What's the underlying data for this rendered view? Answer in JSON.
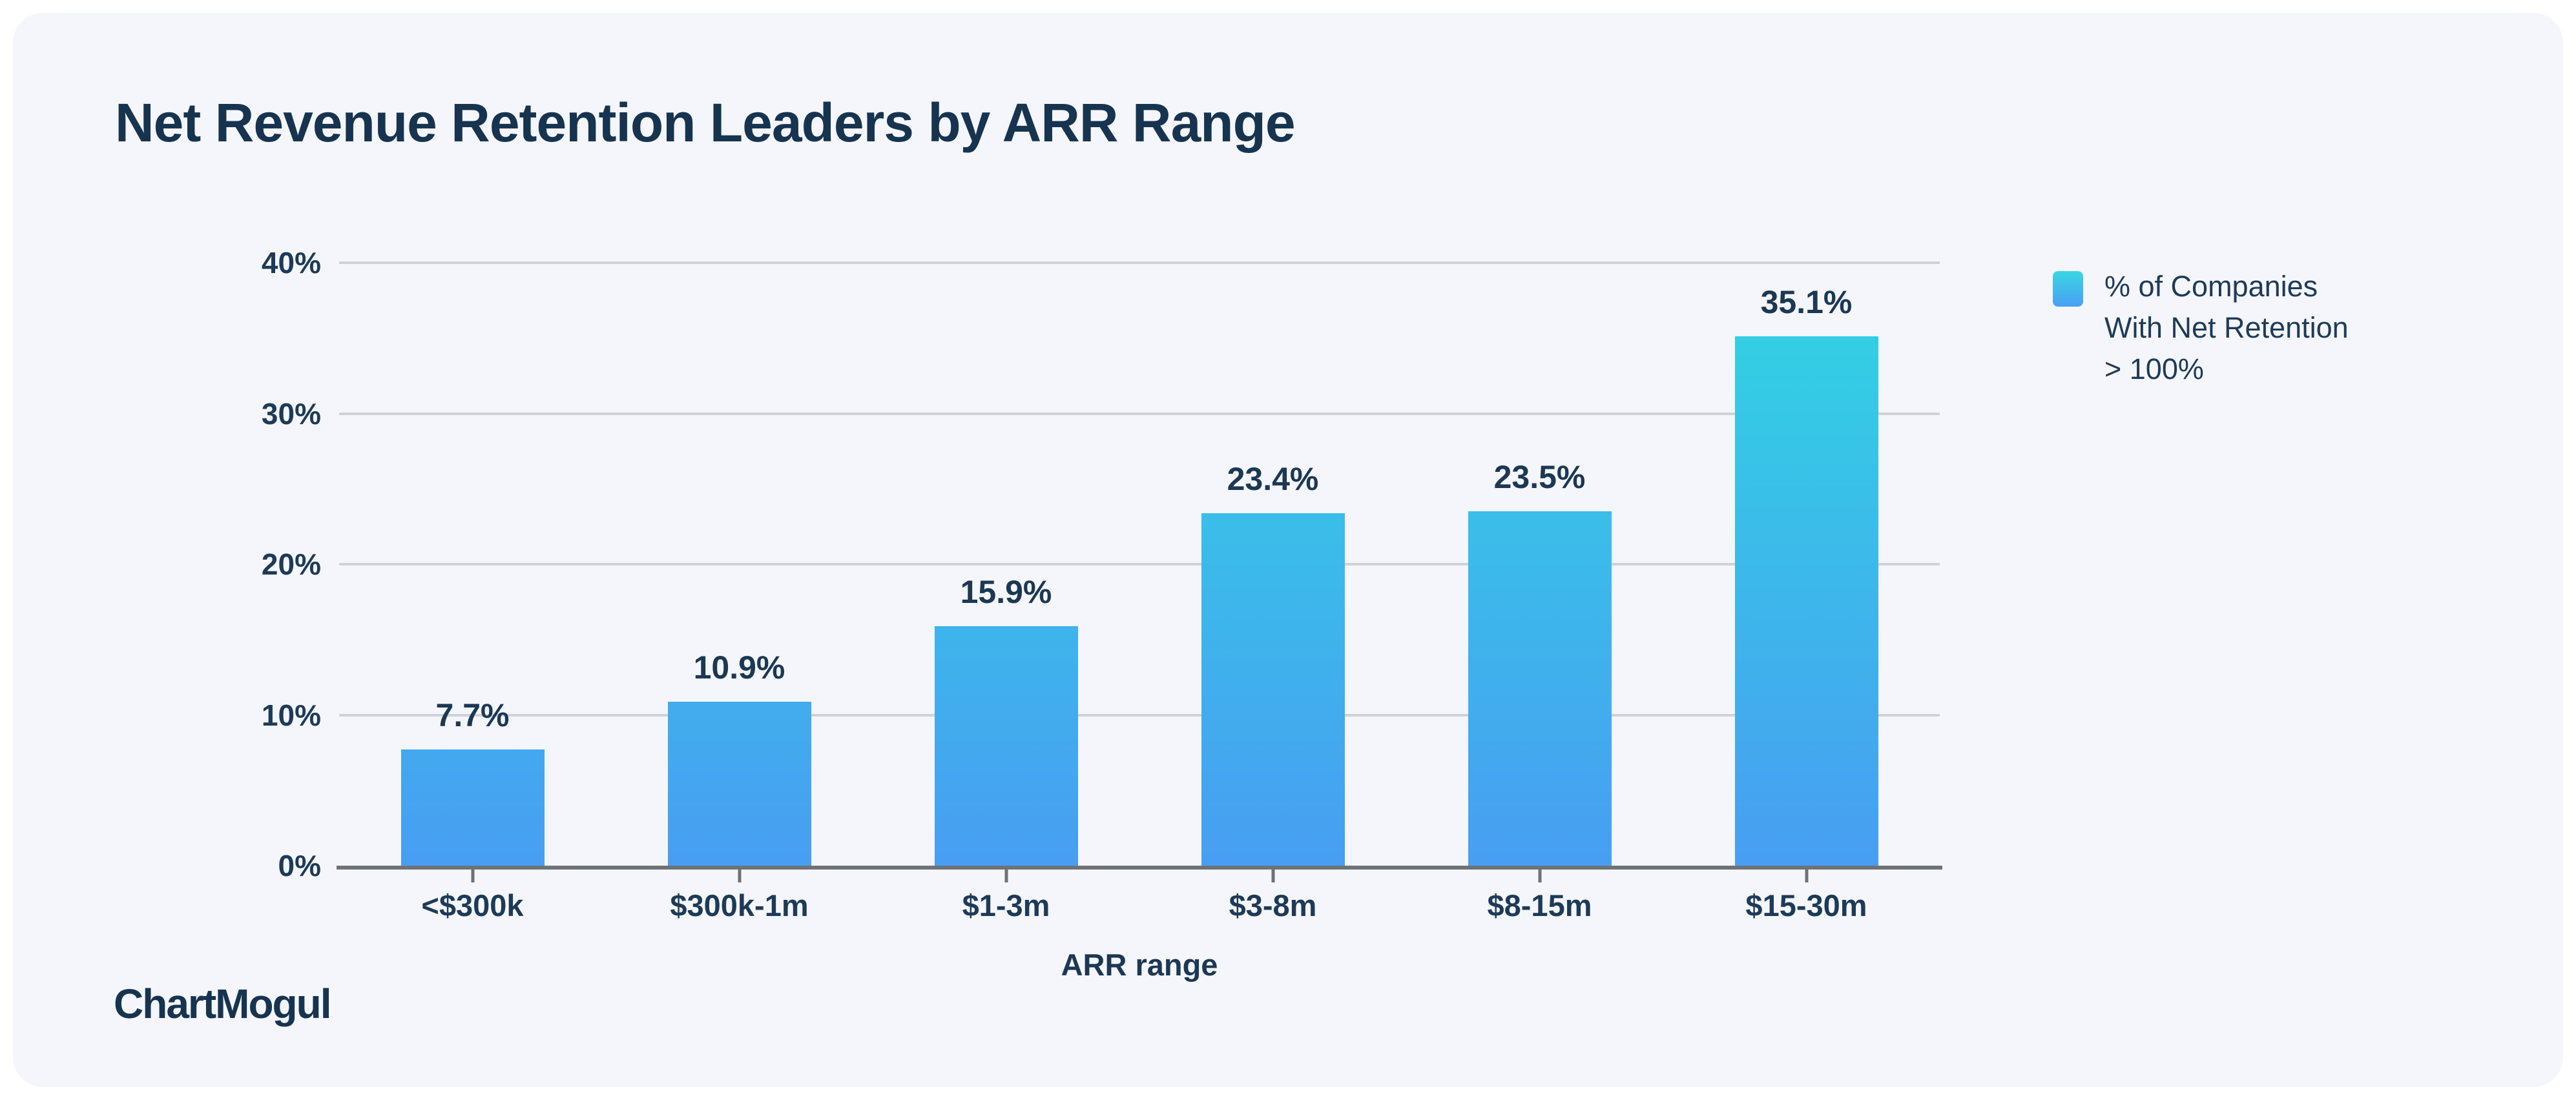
{
  "page": {
    "background": "#ffffff",
    "card_background": "#f5f6fb"
  },
  "header": {
    "title": "Net Revenue Retention Leaders by ARR Range"
  },
  "legend": {
    "label_lines": [
      "% of Companies",
      "With Net Retention",
      "> 100%"
    ],
    "label_text": "% of Companies With Net Retention > 100%"
  },
  "footer": {
    "brand": "ChartMogul"
  },
  "chart_data": {
    "type": "bar",
    "title": "Net Revenue Retention Leaders by ARR Range",
    "categories": [
      "<$300k",
      "$300k-1m",
      "$1-3m",
      "$3-8m",
      "$8-15m",
      "$15-30m"
    ],
    "values": [
      7.7,
      10.9,
      15.9,
      23.4,
      23.5,
      35.1
    ],
    "value_labels": [
      "7.7%",
      "10.9%",
      "15.9%",
      "23.4%",
      "23.5%",
      "35.1%"
    ],
    "xlabel": "ARR range",
    "ylabel": "",
    "ylim": [
      0,
      40
    ],
    "yticks": [
      {
        "value": 0,
        "label": "0%"
      },
      {
        "value": 10,
        "label": "10%"
      },
      {
        "value": 20,
        "label": "20%"
      },
      {
        "value": 30,
        "label": "30%"
      },
      {
        "value": 40,
        "label": "40%"
      }
    ],
    "grid": true,
    "legend_position": "right",
    "legend_label": "% of Companies With Net Retention > 100%",
    "colors": {
      "bar_gradient_top": "#30d5e2",
      "bar_gradient_bottom": "#489ef2",
      "text_navy": "#1d3b58",
      "gridline": "#cfd3d9",
      "axis_line": "#6d7278"
    }
  }
}
